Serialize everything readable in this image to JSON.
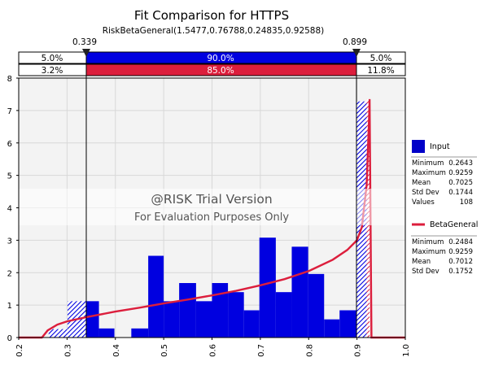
{
  "colors": {
    "input_fill": "#0000c8",
    "fit_line": "#dc1e3c",
    "bar_blue": "#0000e0",
    "bar_red": "#dc1e3c",
    "plot_bg": "#f3f3f3",
    "watermark_band": "#ffffff"
  },
  "chart_data": {
    "type": "bar",
    "title": "Fit Comparison for HTTPS",
    "subtitle": "RiskBetaGeneral(1.5477,0.76788,0.24835,0.92588)",
    "xlim": [
      0.2,
      1.0
    ],
    "ylim": [
      0,
      8
    ],
    "xticks": [
      "0.2",
      "0.3",
      "0.4",
      "0.5",
      "0.6",
      "0.7",
      "0.8",
      "0.9",
      "1.0"
    ],
    "yticks": [
      "0",
      "1",
      "2",
      "3",
      "4",
      "5",
      "6",
      "7",
      "8"
    ],
    "grid": true,
    "legend_position": "right",
    "markers": {
      "left": "0.339",
      "right": "0.899"
    },
    "blue_bar": {
      "left": "5.0%",
      "middle": "90.0%",
      "right": "5.0%"
    },
    "red_bar": {
      "left": "3.2%",
      "middle": "85.0%",
      "right": "11.8%"
    },
    "histogram": {
      "bins": [
        {
          "x0": 0.262,
          "x1": 0.301,
          "y": 0.26
        },
        {
          "x0": 0.301,
          "x1": 0.339,
          "y": 1.12
        },
        {
          "x0": 0.339,
          "x1": 0.366,
          "y": 1.12
        },
        {
          "x0": 0.366,
          "x1": 0.398,
          "y": 0.28
        },
        {
          "x0": 0.398,
          "x1": 0.433,
          "y": 0.0
        },
        {
          "x0": 0.433,
          "x1": 0.468,
          "y": 0.28
        },
        {
          "x0": 0.468,
          "x1": 0.5,
          "y": 2.52
        },
        {
          "x0": 0.5,
          "x1": 0.532,
          "y": 1.12
        },
        {
          "x0": 0.532,
          "x1": 0.567,
          "y": 1.68
        },
        {
          "x0": 0.567,
          "x1": 0.6,
          "y": 1.12
        },
        {
          "x0": 0.6,
          "x1": 0.633,
          "y": 1.68
        },
        {
          "x0": 0.633,
          "x1": 0.666,
          "y": 1.4
        },
        {
          "x0": 0.666,
          "x1": 0.698,
          "y": 0.84
        },
        {
          "x0": 0.698,
          "x1": 0.732,
          "y": 3.08
        },
        {
          "x0": 0.732,
          "x1": 0.765,
          "y": 1.4
        },
        {
          "x0": 0.765,
          "x1": 0.799,
          "y": 2.8
        },
        {
          "x0": 0.799,
          "x1": 0.832,
          "y": 1.96
        },
        {
          "x0": 0.832,
          "x1": 0.864,
          "y": 0.56
        },
        {
          "x0": 0.864,
          "x1": 0.899,
          "y": 0.84
        },
        {
          "x0": 0.899,
          "x1": 0.926,
          "y": 7.28
        }
      ]
    },
    "fit_curve": {
      "x": [
        0.2,
        0.248,
        0.26,
        0.28,
        0.3,
        0.34,
        0.4,
        0.45,
        0.5,
        0.55,
        0.6,
        0.65,
        0.7,
        0.75,
        0.8,
        0.85,
        0.88,
        0.9,
        0.91,
        0.92,
        0.925,
        0.926,
        0.93,
        0.96,
        1.0
      ],
      "y": [
        0.0,
        0.0,
        0.22,
        0.4,
        0.5,
        0.63,
        0.8,
        0.92,
        1.05,
        1.17,
        1.3,
        1.44,
        1.61,
        1.8,
        2.05,
        2.4,
        2.7,
        3.0,
        3.4,
        4.7,
        6.8,
        7.35,
        0.0,
        0.0,
        0.0
      ]
    },
    "legend": [
      {
        "name": "Input",
        "stats": [
          {
            "label": "Minimum",
            "value": "0.2643"
          },
          {
            "label": "Maximum",
            "value": "0.9259"
          },
          {
            "label": "Mean",
            "value": "0.7025"
          },
          {
            "label": "Std Dev",
            "value": "0.1744"
          },
          {
            "label": "Values",
            "value": "108"
          }
        ]
      },
      {
        "name": "BetaGeneral",
        "stats": [
          {
            "label": "Minimum",
            "value": "0.2484"
          },
          {
            "label": "Maximum",
            "value": "0.9259"
          },
          {
            "label": "Mean",
            "value": "0.7012"
          },
          {
            "label": "Std Dev",
            "value": "0.1752"
          }
        ]
      }
    ],
    "watermark": {
      "line1": "@RISK Trial Version",
      "line2": "For Evaluation Purposes Only"
    }
  }
}
